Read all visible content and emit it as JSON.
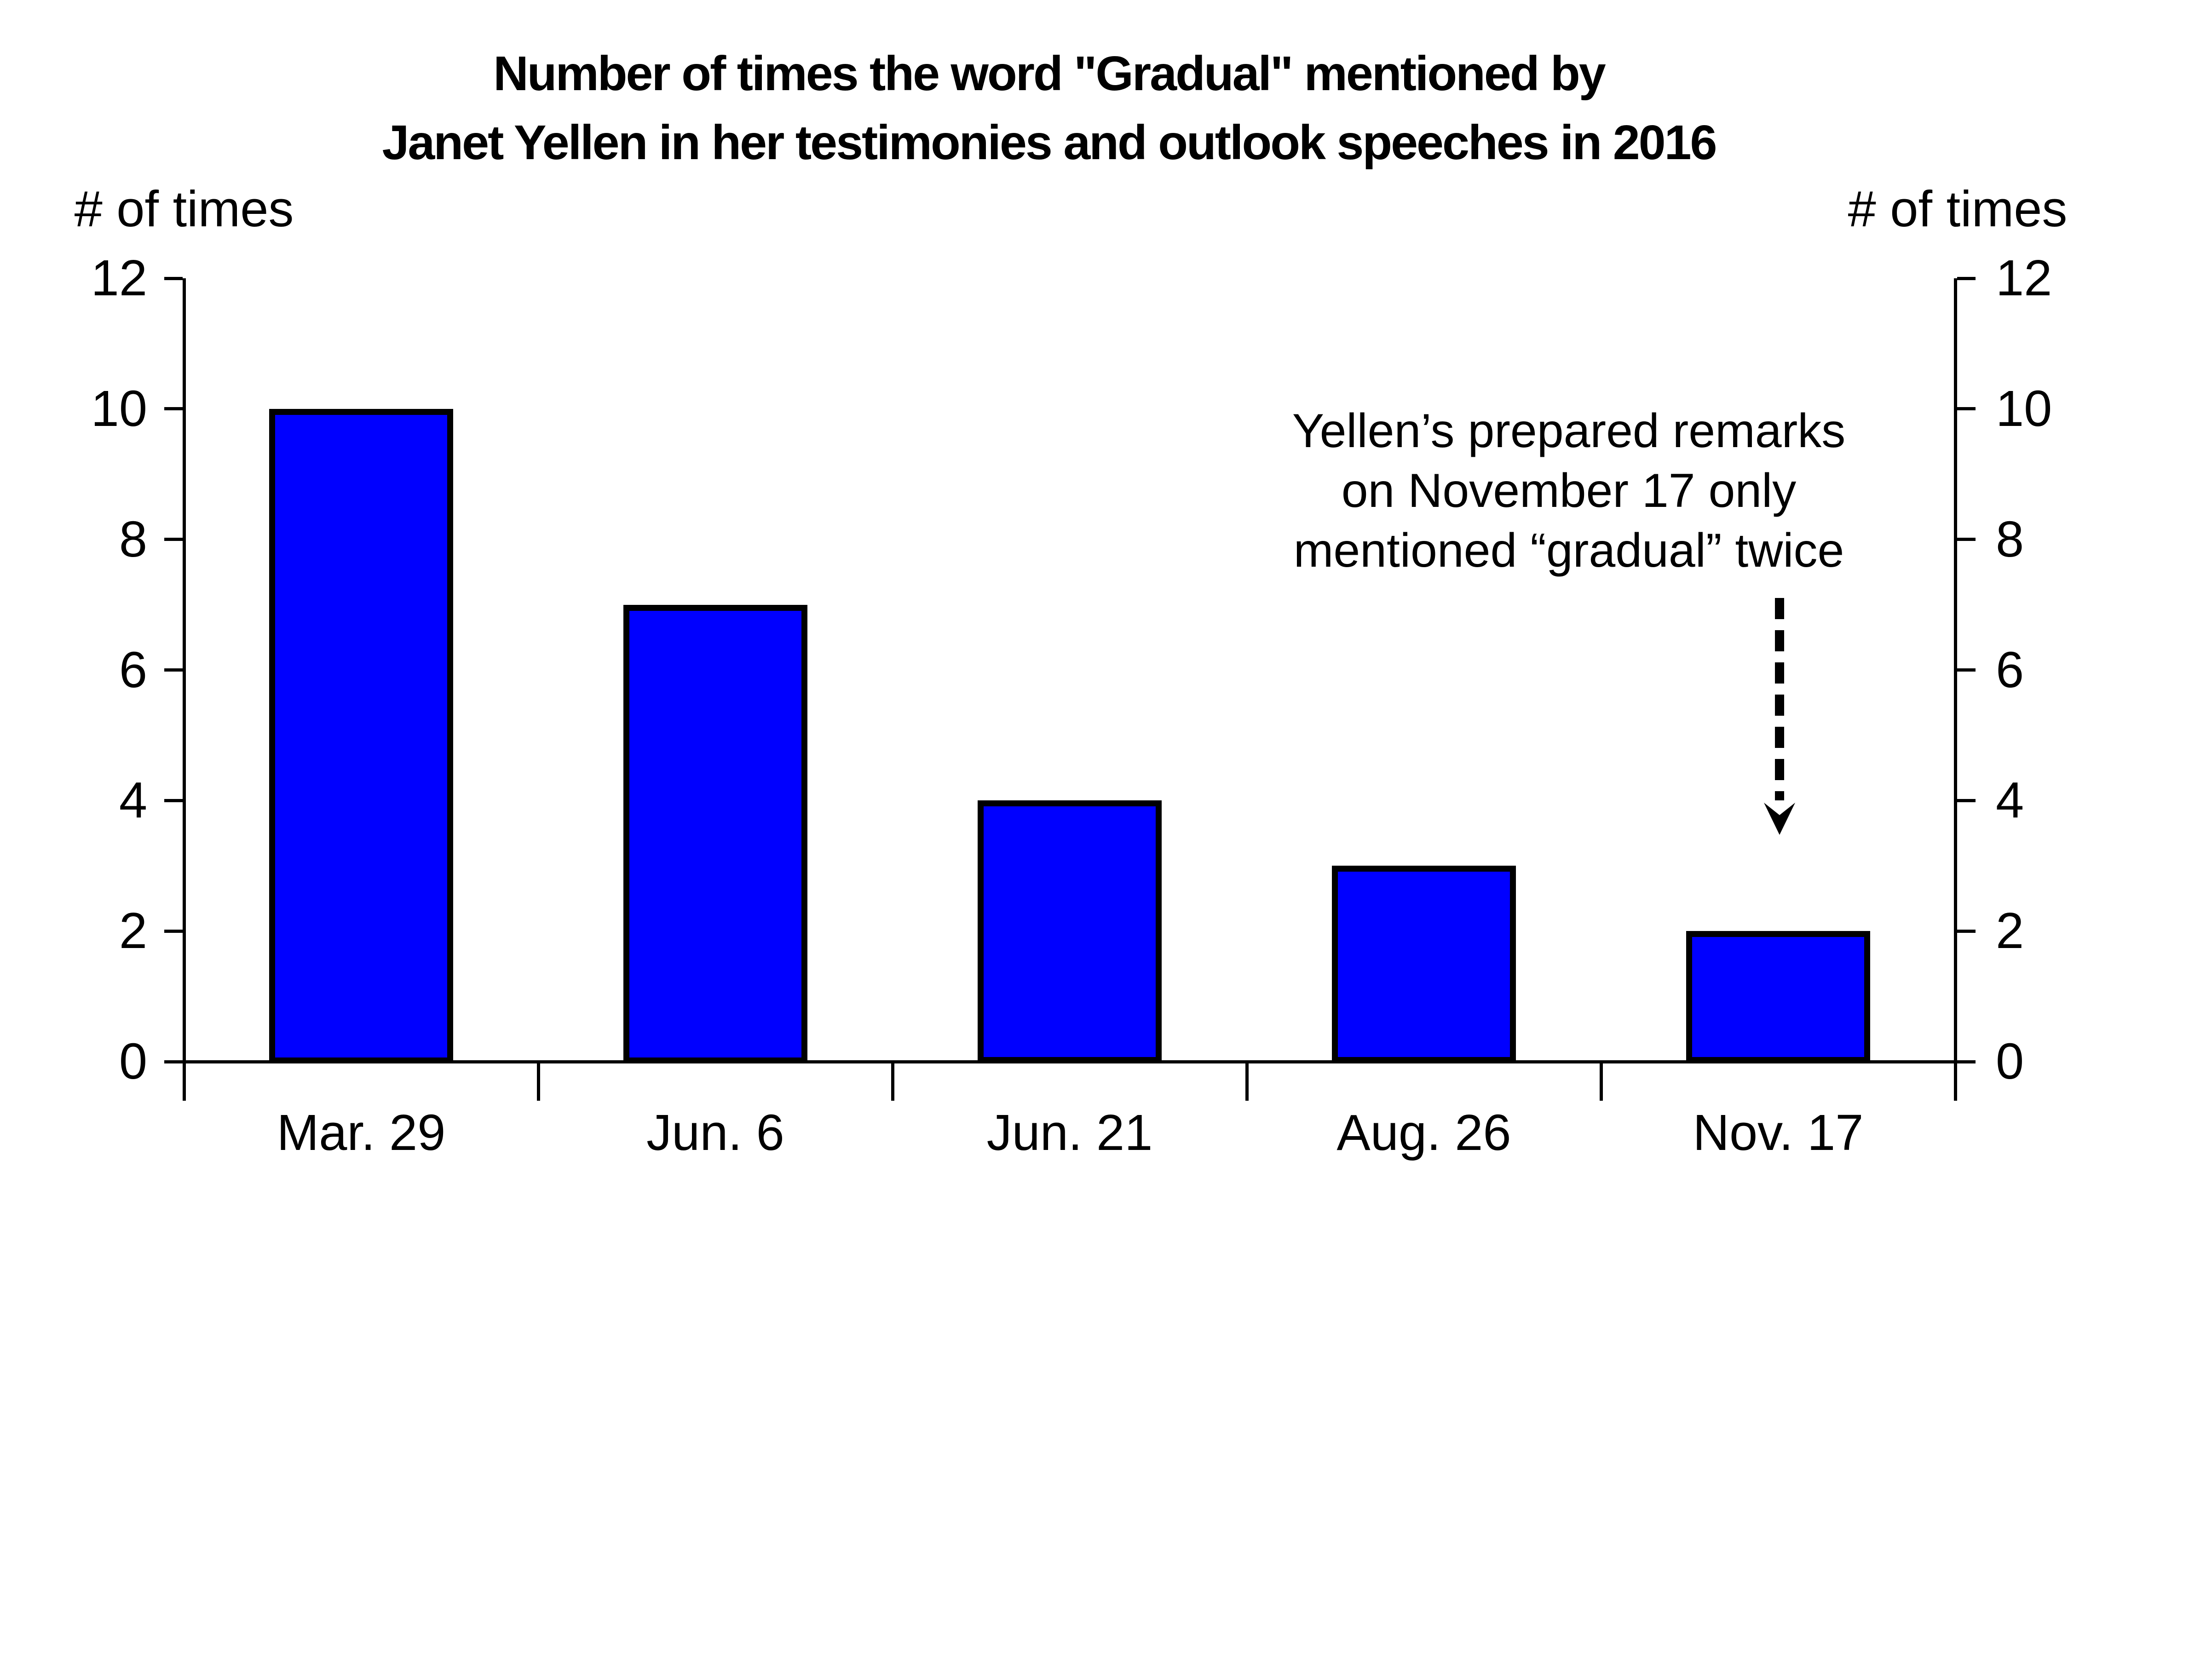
{
  "title": {
    "line1": "Number of times the word \"Gradual\" mentioned by",
    "line2": "Janet Yellen in her testimonies and outlook speeches in 2016"
  },
  "axes": {
    "left_label": "# of times",
    "right_label": "# of times"
  },
  "annotation": {
    "line1": "Yellen’s prepared remarks",
    "line2": "on November 17 only",
    "line3": "mentioned “gradual” twice"
  },
  "chart_data": {
    "type": "bar",
    "title": "Number of times the word \"Gradual\" mentioned by Janet Yellen in her testimonies and outlook speeches in 2016",
    "categories": [
      "Mar. 29",
      "Jun. 6",
      "Jun. 21",
      "Aug. 26",
      "Nov. 17"
    ],
    "values": [
      10,
      7,
      4,
      3,
      2
    ],
    "xlabel": "",
    "ylabel_left": "# of times",
    "ylabel_right": "# of times",
    "ylim": [
      0,
      12
    ],
    "yticks": [
      0,
      2,
      4,
      6,
      8,
      10,
      12
    ],
    "grid": false,
    "legend": "none",
    "bar_fill": "#0000FF",
    "bar_stroke": "#000000",
    "axis_color": "#000000",
    "text_color": "#000000",
    "background": "#FFFFFF",
    "annotation": {
      "text": "Yellen’s prepared remarks on November 17 only mentioned “gradual” twice",
      "target_category": "Nov. 17",
      "arrow_style": "dashed-down-arrow"
    }
  }
}
